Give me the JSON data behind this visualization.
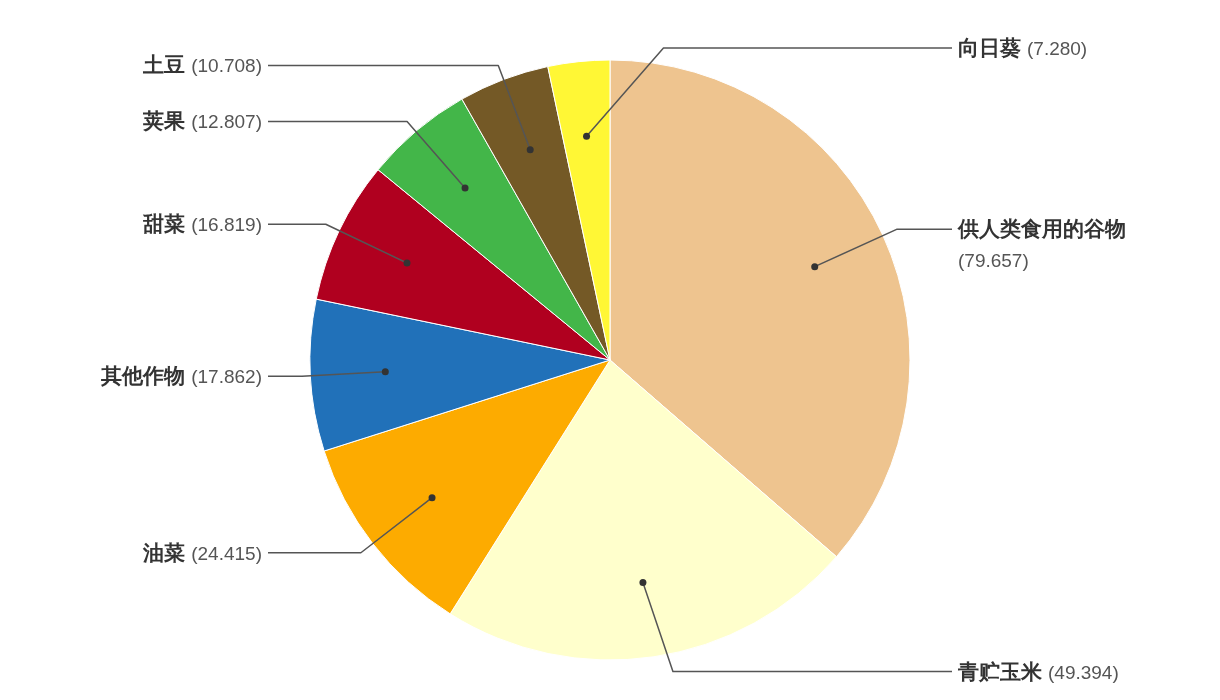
{
  "chart_data": {
    "type": "pie",
    "categories": [
      "供人类食用的谷物",
      "青贮玉米",
      "油菜",
      "其他作物",
      "甜菜",
      "荚果",
      "土豆",
      "向日葵"
    ],
    "values": [
      79.657,
      49.394,
      24.415,
      17.862,
      16.819,
      12.807,
      10.708,
      7.28
    ],
    "value_labels": [
      "(79.657)",
      "(49.394)",
      "(24.415)",
      "(17.862)",
      "(16.819)",
      "(12.807)",
      "(10.708)",
      "(7.280)"
    ],
    "colors": [
      "#eec48f",
      "#ffffcc",
      "#fdab00",
      "#2171b9",
      "#b0001f",
      "#43b649",
      "#745926",
      "#fff735"
    ]
  }
}
